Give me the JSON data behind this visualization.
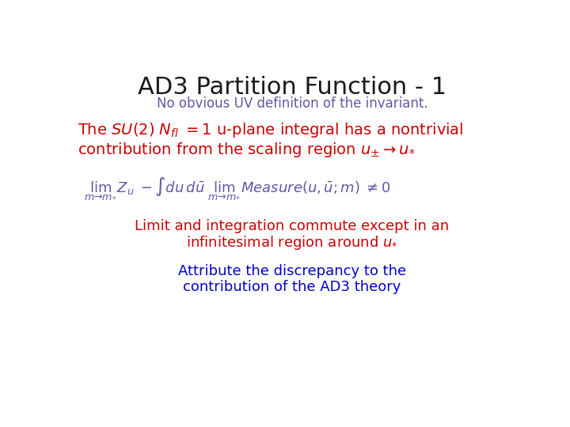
{
  "title": "AD3 Partition Function - 1",
  "title_color": "#1a1a1a",
  "title_fontsize": 22,
  "subtitle": "No obvious UV definition of the invariant.",
  "subtitle_color": "#6655aa",
  "subtitle_fontsize": 12,
  "bg_color": "#ffffff",
  "red_color": "#cc0000",
  "purple_color": "#6655aa",
  "blue_color": "#0000cc",
  "line1_fontsize": 14,
  "formula_fontsize": 13,
  "line3_fontsize": 13,
  "line4_fontsize": 13
}
